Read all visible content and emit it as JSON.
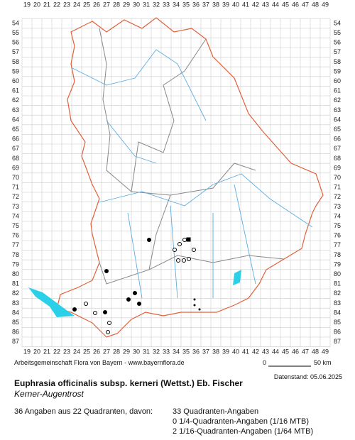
{
  "map": {
    "columns": [
      19,
      20,
      21,
      22,
      23,
      24,
      25,
      26,
      27,
      28,
      29,
      30,
      31,
      32,
      33,
      34,
      35,
      36,
      37,
      38,
      39,
      40,
      41,
      42,
      43,
      44,
      45,
      46,
      47,
      48,
      49
    ],
    "rows": [
      54,
      55,
      56,
      57,
      58,
      59,
      60,
      61,
      62,
      63,
      64,
      65,
      66,
      67,
      68,
      69,
      70,
      71,
      72,
      73,
      74,
      75,
      76,
      77,
      78,
      79,
      80,
      81,
      82,
      83,
      84,
      85,
      86,
      87
    ],
    "credit": "Arbeitsgemeinschaft Flora von Bayern - www.bayernflora.de",
    "scale_start": "0",
    "scale_end": "50 km",
    "date": "Datenstand: 05.06.2025"
  },
  "species": {
    "scientific_name": "Euphrasia officinalis subsp. kerneri (Wettst.) Eb. Fischer",
    "common_name": "Kerner-Augentrost"
  },
  "summary": {
    "total": "36 Angaben aus 22 Quadranten, davon:",
    "lines": [
      "33 Quadranten-Angaben",
      "0 1/4-Quadranten-Angaben (1/16 MTB)",
      "2 1/16-Quadranten-Angaben (1/64 MTB)"
    ]
  }
}
